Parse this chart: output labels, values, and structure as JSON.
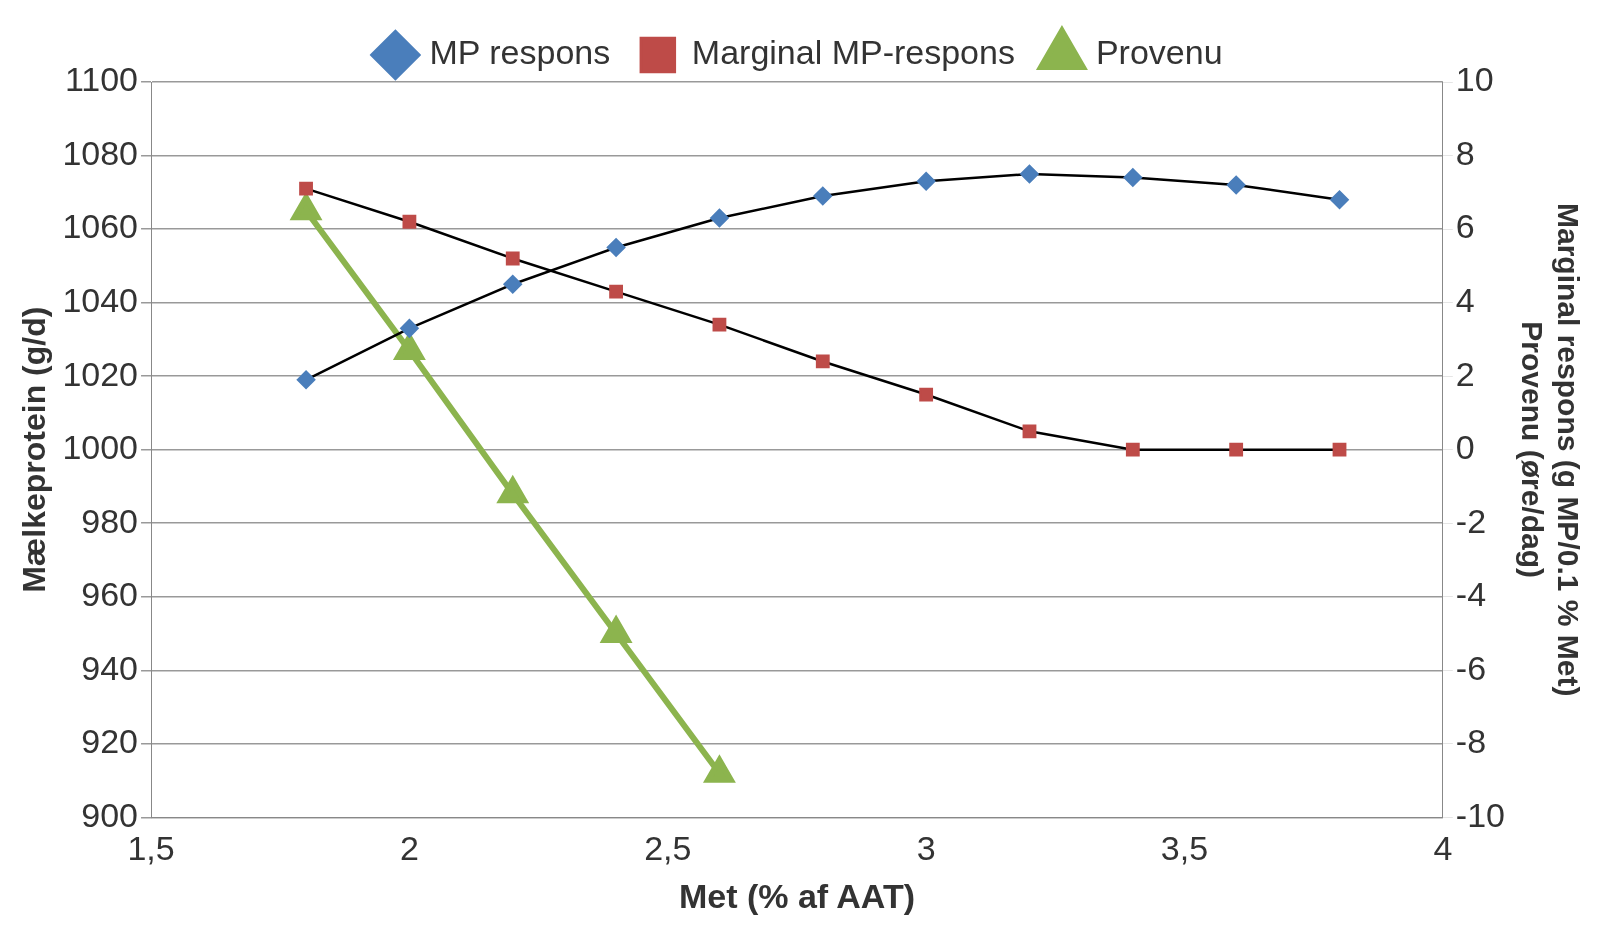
{
  "chart_data": {
    "type": "line",
    "xlabel": "Met (% af AAT)",
    "ylabel": "Mælkeprotein (g/d)",
    "y2label": "Marginal respons (g MP/0.1 % Met)\nProvenu (øre/dag)",
    "xlim": [
      1.5,
      4
    ],
    "xticks": [
      {
        "value": 1.5,
        "label": "1,5"
      },
      2,
      {
        "value": 2.5,
        "label": "2,5"
      },
      3,
      {
        "value": 3.5,
        "label": "3,5"
      },
      4
    ],
    "ylim": [
      900,
      1100
    ],
    "yticks": [
      900,
      920,
      940,
      960,
      980,
      1000,
      1020,
      1040,
      1060,
      1080,
      1100
    ],
    "y2lim": [
      -10,
      10
    ],
    "y2ticks": [
      -10,
      -8,
      -6,
      -4,
      -2,
      0,
      2,
      4,
      6,
      8,
      10
    ],
    "grid": "y",
    "legend": "top",
    "series": [
      {
        "name": "MP respons",
        "color": "#4a7ebb",
        "marker": "diamond",
        "x": [
          1.8,
          2,
          2.2,
          2.4,
          2.6,
          2.8,
          3,
          3.2,
          3.4,
          3.6,
          3.8
        ],
        "values": [
          1019,
          1033,
          1045,
          1055,
          1063,
          1069,
          1073,
          1075,
          1074,
          1072,
          1068
        ]
      },
      {
        "name": "Marginal MP-respons",
        "color": "#be4b48",
        "marker": "square",
        "axis": "y2",
        "x": [
          1.8,
          2,
          2.2,
          2.4,
          2.6,
          2.8,
          3,
          3.2,
          3.4,
          3.6,
          3.8
        ],
        "values": [
          7.1,
          6.2,
          5.2,
          4.3,
          3.4,
          2.4,
          1.5,
          0.5,
          0,
          0,
          0
        ]
      },
      {
        "name": "Provenu",
        "color": "#8cb44e",
        "marker": "triangle",
        "axis": "y2",
        "x": [
          1.8,
          2,
          2.2,
          2.4,
          2.6
        ],
        "values": [
          6.5,
          2.7,
          -1.2,
          -5.0,
          -8.8
        ]
      }
    ]
  }
}
